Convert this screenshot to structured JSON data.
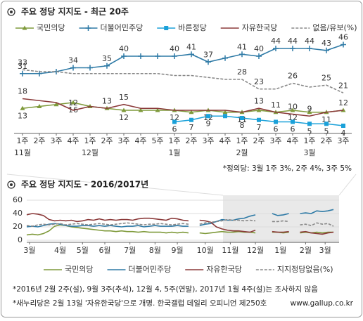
{
  "chart_data": [
    {
      "type": "line",
      "title": "주요 정당 지지도 - 최근 20주",
      "categories": [
        "1주",
        "2주",
        "3주",
        "4주",
        "1주",
        "2주",
        "3주",
        "4주",
        "5주",
        "1주",
        "2주",
        "3주",
        "4주",
        "1주",
        "2주",
        "3주",
        "4주",
        "1주",
        "2주",
        "3주"
      ],
      "months": [
        "11월",
        null,
        null,
        null,
        "12월",
        null,
        null,
        null,
        null,
        "1월",
        null,
        null,
        null,
        "2월",
        null,
        null,
        null,
        "3월",
        null,
        null
      ],
      "ylim": [
        0,
        50
      ],
      "series": [
        {
          "name": "국민의당",
          "color": "#7f9a3b",
          "marker": "triangle",
          "label_position": "below",
          "values": [
            13,
            14,
            15,
            16,
            14,
            13,
            12,
            12,
            12,
            12,
            11,
            12,
            11,
            11,
            12,
            11,
            12,
            11,
            11,
            12
          ],
          "value_labels": [
            "13",
            null,
            null,
            "16",
            null,
            null,
            "12",
            null,
            null,
            "12",
            null,
            "12",
            null,
            "11",
            null,
            null,
            "12",
            null,
            "11",
            null
          ]
        },
        {
          "name": "더불어민주당",
          "color": "#2e7aa6",
          "marker": "plus",
          "label_position": "above",
          "values": [
            31,
            31,
            32,
            34,
            34,
            35,
            40,
            40,
            40,
            40,
            41,
            37,
            39,
            41,
            40,
            44,
            44,
            44,
            43,
            46
          ],
          "value_labels": [
            "31",
            null,
            null,
            "34",
            null,
            "35",
            "40",
            null,
            null,
            "40",
            "41",
            "37",
            null,
            "41",
            "40",
            "44",
            "44",
            "44",
            "43",
            "46"
          ]
        },
        {
          "name": "바른정당",
          "color": "#1ba1d9",
          "marker": "square",
          "label_position": "below",
          "values": [
            null,
            null,
            null,
            null,
            null,
            null,
            null,
            null,
            null,
            6,
            7,
            9,
            9,
            8,
            7,
            6,
            6,
            5,
            5,
            4
          ],
          "value_labels": [
            null,
            null,
            null,
            null,
            null,
            null,
            null,
            null,
            null,
            "6",
            "7",
            "9",
            null,
            "8",
            "7",
            "6",
            "6",
            "5",
            "5",
            "4"
          ]
        },
        {
          "name": "자유한국당",
          "color": "#8b3a3a",
          "marker": null,
          "label_position": "above",
          "values": [
            18,
            17,
            16,
            12,
            14,
            13,
            15,
            13,
            13,
            12,
            12,
            12,
            12,
            11,
            13,
            11,
            10,
            9,
            11,
            12
          ],
          "value_labels": [
            "18",
            null,
            null,
            "12",
            null,
            "13",
            "15",
            null,
            null,
            null,
            null,
            null,
            null,
            null,
            "13",
            "11",
            "10",
            "9",
            null,
            "12"
          ]
        },
        {
          "name": "없음/유보(%)",
          "color": "#888888",
          "marker": null,
          "dash": true,
          "label_position": "above",
          "values": [
            33,
            32,
            32,
            31,
            31,
            31,
            31,
            31,
            31,
            30,
            30,
            29,
            28,
            28,
            23,
            23,
            26,
            24,
            25,
            21
          ],
          "value_labels": [
            "33",
            null,
            null,
            null,
            null,
            null,
            null,
            null,
            null,
            null,
            null,
            null,
            null,
            "28",
            "23",
            null,
            "26",
            null,
            "25",
            "21"
          ]
        }
      ],
      "note": "*정의당: 3월 1주 3%, 2주 4%, 3주 5%"
    },
    {
      "type": "line",
      "title": "주요 정당 지지도 - 2016/2017년",
      "xlim": [
        0,
        56
      ],
      "xticks": [
        {
          "value": 0.5,
          "label": "3월"
        },
        {
          "value": 6,
          "label": "4월"
        },
        {
          "value": 10,
          "label": "5월"
        },
        {
          "value": 14,
          "label": "6월"
        },
        {
          "value": 18.5,
          "label": "7월"
        },
        {
          "value": 23,
          "label": "8월"
        },
        {
          "value": 27,
          "label": "9월"
        },
        {
          "value": 32,
          "label": "10월"
        },
        {
          "value": 36.5,
          "label": "11월"
        },
        {
          "value": 41,
          "label": "12월"
        },
        {
          "value": 45.5,
          "label": "1월"
        },
        {
          "value": 50,
          "label": "2월"
        },
        {
          "value": 53.5,
          "label": "3월"
        }
      ],
      "ylim": [
        0,
        60
      ],
      "yticks": [
        0,
        20,
        40,
        60
      ],
      "grid": true,
      "series": [
        {
          "name": "국민의당",
          "color": "#7f9a3b",
          "values": [
            8,
            9,
            8,
            10,
            14,
            21,
            23,
            22,
            20,
            19,
            18,
            17,
            16,
            15,
            14,
            14,
            13,
            14,
            13,
            13,
            12,
            13,
            12,
            12,
            12,
            11,
            12,
            11,
            12,
            11,
            null,
            11,
            10,
            11,
            12,
            13,
            12,
            12,
            13,
            12,
            12,
            11,
            null,
            null,
            12,
            12,
            11,
            12,
            null,
            11,
            12,
            11,
            12,
            11,
            12,
            12
          ]
        },
        {
          "name": "더불어민주당",
          "color": "#2e7aa6",
          "values": [
            20,
            21,
            20,
            22,
            24,
            25,
            24,
            22,
            21,
            21,
            22,
            22,
            21,
            22,
            21,
            22,
            21,
            20,
            21,
            21,
            22,
            20,
            21,
            22,
            21,
            21,
            21,
            22,
            21,
            21,
            null,
            22,
            24,
            25,
            28,
            31,
            30,
            30,
            32,
            33,
            36,
            38,
            null,
            null,
            40,
            37,
            38,
            40,
            null,
            40,
            41,
            40,
            44,
            43,
            44,
            46
          ]
        },
        {
          "name": "자유한국당",
          "color": "#8b3a3a",
          "values": [
            38,
            40,
            39,
            37,
            31,
            29,
            30,
            29,
            30,
            28,
            29,
            31,
            30,
            32,
            30,
            31,
            30,
            31,
            31,
            30,
            32,
            33,
            33,
            32,
            31,
            30,
            33,
            32,
            30,
            29,
            null,
            30,
            29,
            27,
            20,
            17,
            15,
            14,
            14,
            13,
            12,
            15,
            null,
            null,
            13,
            12,
            12,
            13,
            null,
            12,
            13,
            11,
            10,
            9,
            11,
            12
          ]
        },
        {
          "name": "지지정당없음(%)",
          "color": "#888888",
          "dash": true,
          "values": [
            22,
            21,
            23,
            24,
            23,
            24,
            25,
            23,
            24,
            25,
            24,
            23,
            24,
            25,
            24,
            23,
            24,
            25,
            26,
            25,
            24,
            23,
            24,
            24,
            25,
            24,
            23,
            24,
            25,
            24,
            null,
            24,
            26,
            27,
            28,
            29,
            31,
            30,
            30,
            29,
            30,
            29,
            null,
            null,
            28,
            28,
            29,
            28,
            null,
            23,
            24,
            22,
            26,
            24,
            25,
            21
          ]
        }
      ]
    }
  ],
  "notes": [
    "*2016년 2월 2주(설), 9월 3주(추석), 12월 4, 5주(연말), 2017년 1월 4주(설)는 조사하지 않음",
    "*새누리당은 2월 13일 '자유한국당'으로 개명. 한국갤럽 데일리 오피니언 제250호"
  ],
  "source": "www.gallup.co.kr"
}
